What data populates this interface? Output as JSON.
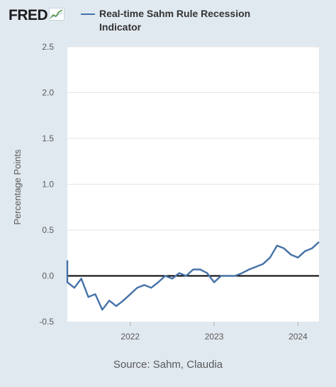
{
  "header": {
    "logo_text": "FRED",
    "logo_icon": "fred-chart-icon"
  },
  "legend": {
    "series_label": "Real-time Sahm Rule Recession Indicator",
    "color": "#4572a7"
  },
  "footer": {
    "source": "Source: Sahm, Claudia"
  },
  "chart_data": {
    "type": "line",
    "title": "",
    "xlabel": "",
    "ylabel": "Percentage Points",
    "ylim": [
      -0.5,
      2.5
    ],
    "yticks": [
      -0.5,
      0.0,
      0.5,
      1.0,
      1.5,
      2.0,
      2.5
    ],
    "ytick_labels": [
      "-0.5",
      "0.0",
      "0.5",
      "1.0",
      "1.5",
      "2.0",
      "2.5"
    ],
    "xlim": [
      "2021-04",
      "2024-04"
    ],
    "xticks": [
      "2022-01",
      "2023-01",
      "2024-01"
    ],
    "xtick_labels": [
      "2022",
      "2023",
      "2024"
    ],
    "reference_line": 0,
    "grid": "horizontal",
    "series": [
      {
        "name": "Real-time Sahm Rule Recession Indicator",
        "color": "#4572a7",
        "points": [
          {
            "x": "2021-04",
            "y": 0.17
          },
          {
            "x": "2021-04",
            "y": -0.07
          },
          {
            "x": "2021-05",
            "y": -0.13
          },
          {
            "x": "2021-06",
            "y": -0.03
          },
          {
            "x": "2021-07",
            "y": -0.23
          },
          {
            "x": "2021-08",
            "y": -0.2
          },
          {
            "x": "2021-09",
            "y": -0.37
          },
          {
            "x": "2021-10",
            "y": -0.27
          },
          {
            "x": "2021-11",
            "y": -0.33
          },
          {
            "x": "2021-12",
            "y": -0.27
          },
          {
            "x": "2022-01",
            "y": -0.2
          },
          {
            "x": "2022-02",
            "y": -0.13
          },
          {
            "x": "2022-03",
            "y": -0.1
          },
          {
            "x": "2022-04",
            "y": -0.13
          },
          {
            "x": "2022-05",
            "y": -0.07
          },
          {
            "x": "2022-06",
            "y": 0.0
          },
          {
            "x": "2022-07",
            "y": -0.03
          },
          {
            "x": "2022-08",
            "y": 0.03
          },
          {
            "x": "2022-09",
            "y": 0.0
          },
          {
            "x": "2022-10",
            "y": 0.07
          },
          {
            "x": "2022-11",
            "y": 0.07
          },
          {
            "x": "2022-12",
            "y": 0.03
          },
          {
            "x": "2023-01",
            "y": -0.07
          },
          {
            "x": "2023-02",
            "y": 0.0
          },
          {
            "x": "2023-03",
            "y": 0.0
          },
          {
            "x": "2023-04",
            "y": 0.0
          },
          {
            "x": "2023-05",
            "y": 0.03
          },
          {
            "x": "2023-06",
            "y": 0.07
          },
          {
            "x": "2023-07",
            "y": 0.1
          },
          {
            "x": "2023-08",
            "y": 0.13
          },
          {
            "x": "2023-09",
            "y": 0.2
          },
          {
            "x": "2023-10",
            "y": 0.33
          },
          {
            "x": "2023-11",
            "y": 0.3
          },
          {
            "x": "2023-12",
            "y": 0.23
          },
          {
            "x": "2024-01",
            "y": 0.2
          },
          {
            "x": "2024-02",
            "y": 0.27
          },
          {
            "x": "2024-03",
            "y": 0.3
          },
          {
            "x": "2024-04",
            "y": 0.37
          }
        ]
      }
    ]
  }
}
